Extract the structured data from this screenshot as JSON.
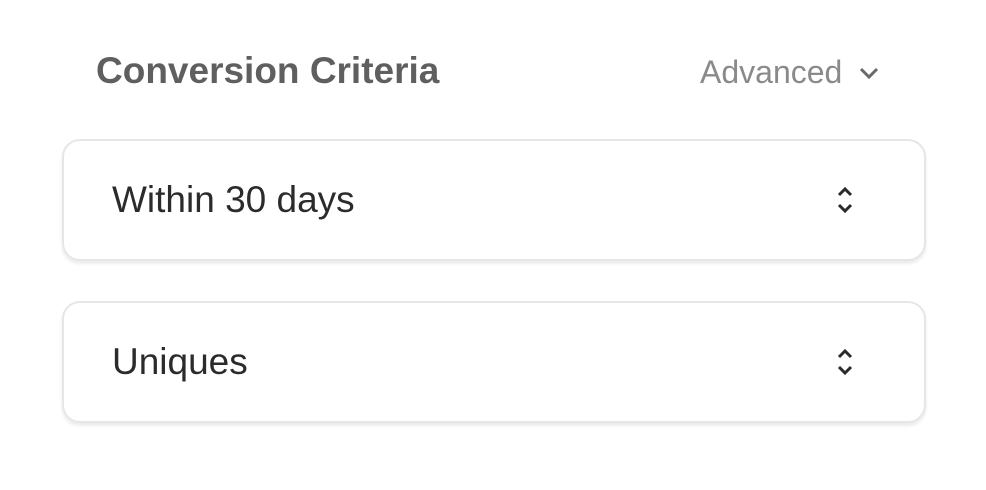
{
  "section": {
    "title": "Conversion Criteria",
    "advanced_label": "Advanced"
  },
  "selects": [
    {
      "value": "Within 30 days"
    },
    {
      "value": "Uniques"
    }
  ]
}
